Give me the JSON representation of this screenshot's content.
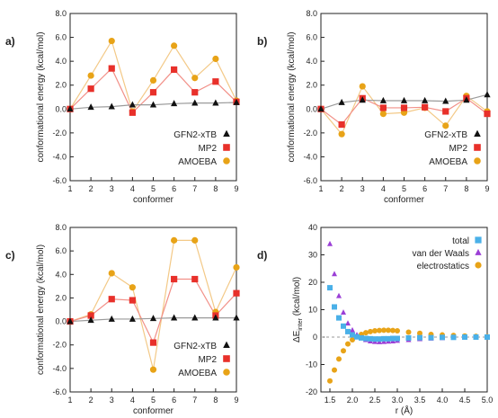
{
  "colors": {
    "gfn2": "#111111",
    "mp2": "#e8302a",
    "amoeba": "#e8a317",
    "amoeba_line": "#f3c987",
    "mp2_line": "#f29088",
    "gfn2_line": "#9a9a9a",
    "total": "#4ab0e8",
    "vdw": "#9b3fd6",
    "elec": "#e8a317",
    "zero": "#9a9a9a"
  },
  "chart_data": [
    {
      "panel": "a)",
      "type": "line",
      "xlabel": "conformer",
      "ylabel": "conformational energy (kcal/mol)",
      "x": [
        1,
        2,
        3,
        4,
        5,
        6,
        7,
        8,
        9
      ],
      "xticks": [
        "1",
        "2",
        "3",
        "4",
        "5",
        "6",
        "7",
        "8",
        "9"
      ],
      "xlim": [
        1,
        9
      ],
      "ylim": [
        -6,
        8
      ],
      "yticks": [
        "-6.0",
        "-4.0",
        "-2.0",
        "0.0",
        "2.0",
        "4.0",
        "6.0",
        "8.0"
      ],
      "legend_position": "lower-right",
      "series": [
        {
          "name": "GFN2-xTB",
          "marker": "triangle",
          "color_key": "gfn2",
          "values": [
            0.0,
            0.15,
            0.2,
            0.35,
            0.35,
            0.45,
            0.5,
            0.5,
            0.55
          ]
        },
        {
          "name": "MP2",
          "marker": "square",
          "color_key": "mp2",
          "values": [
            0.0,
            1.7,
            3.4,
            -0.3,
            1.4,
            3.3,
            1.4,
            2.3,
            0.6
          ]
        },
        {
          "name": "AMOEBA",
          "marker": "circle",
          "color_key": "amoeba",
          "values": [
            0.0,
            2.8,
            5.7,
            -0.2,
            2.4,
            5.3,
            2.6,
            4.2,
            0.7
          ]
        }
      ]
    },
    {
      "panel": "b)",
      "type": "line",
      "xlabel": "conformer",
      "ylabel": "conformational energy (kcal/mol)",
      "x": [
        1,
        2,
        3,
        4,
        5,
        6,
        7,
        8,
        9
      ],
      "xticks": [
        "1",
        "2",
        "3",
        "4",
        "5",
        "6",
        "7",
        "8",
        "9"
      ],
      "xlim": [
        1,
        9
      ],
      "ylim": [
        -6,
        8
      ],
      "yticks": [
        "-6.0",
        "-4.0",
        "-2.0",
        "0.0",
        "2.0",
        "4.0",
        "6.0",
        "8.0"
      ],
      "legend_position": "lower-right",
      "series": [
        {
          "name": "GFN2-xTB",
          "marker": "triangle",
          "color_key": "gfn2",
          "values": [
            0.0,
            0.55,
            0.75,
            0.7,
            0.7,
            0.7,
            0.65,
            0.75,
            1.2
          ]
        },
        {
          "name": "MP2",
          "marker": "square",
          "color_key": "mp2",
          "values": [
            0.0,
            -1.3,
            0.9,
            0.1,
            0.1,
            0.15,
            -0.2,
            0.9,
            -0.4
          ]
        },
        {
          "name": "AMOEBA",
          "marker": "circle",
          "color_key": "amoeba",
          "values": [
            0.0,
            -2.1,
            1.9,
            -0.4,
            -0.3,
            0.1,
            -1.4,
            1.1,
            -0.2
          ]
        }
      ]
    },
    {
      "panel": "c)",
      "type": "line",
      "xlabel": "conformer",
      "ylabel": "conformational energy (kcal/mol)",
      "x": [
        1,
        2,
        3,
        4,
        5,
        6,
        7,
        8,
        9
      ],
      "xticks": [
        "1",
        "2",
        "3",
        "4",
        "5",
        "6",
        "7",
        "8",
        "9"
      ],
      "xlim": [
        1,
        9
      ],
      "ylim": [
        -6,
        8
      ],
      "yticks": [
        "-6.0",
        "-4.0",
        "-2.0",
        "0.0",
        "2.0",
        "4.0",
        "6.0",
        "8.0"
      ],
      "legend_position": "lower-right",
      "series": [
        {
          "name": "GFN2-xTB",
          "marker": "triangle",
          "color_key": "gfn2",
          "values": [
            0.0,
            0.1,
            0.2,
            0.2,
            0.25,
            0.3,
            0.3,
            0.3,
            0.3
          ]
        },
        {
          "name": "MP2",
          "marker": "square",
          "color_key": "mp2",
          "values": [
            0.0,
            0.5,
            1.9,
            1.8,
            -1.8,
            3.6,
            3.6,
            0.5,
            2.4
          ]
        },
        {
          "name": "AMOEBA",
          "marker": "circle",
          "color_key": "amoeba",
          "values": [
            0.0,
            0.6,
            4.1,
            2.9,
            -4.1,
            6.9,
            6.9,
            0.8,
            4.6
          ]
        }
      ]
    },
    {
      "panel": "d)",
      "type": "scatter",
      "xlabel": "r (Å)",
      "ylabel_main": "ΔE",
      "ylabel_sub": "inter",
      "ylabel_tail": " (kcal/mol)",
      "xlim": [
        1.3,
        5.0
      ],
      "ylim": [
        -20,
        40
      ],
      "xticks": [
        1.5,
        2.0,
        2.5,
        3.0,
        3.5,
        4.0,
        4.5,
        5.0
      ],
      "xtick_labels": [
        "1.5",
        "2.0",
        "2.5",
        "3.0",
        "3.5",
        "4.0",
        "4.5",
        "5.0"
      ],
      "yticks": [
        -20,
        -10,
        0,
        10,
        20,
        30,
        40
      ],
      "ytick_labels": [
        "-20",
        "-10",
        "0",
        "10",
        "20",
        "30",
        "40"
      ],
      "legend_position": "upper-right",
      "series": [
        {
          "name": "total",
          "marker": "square",
          "color_key": "total",
          "x": [
            1.5,
            1.6,
            1.7,
            1.8,
            1.9,
            2.0,
            2.1,
            2.2,
            2.3,
            2.4,
            2.5,
            2.6,
            2.7,
            2.8,
            2.9,
            3.0,
            3.25,
            3.5,
            3.75,
            4.0,
            4.25,
            4.5,
            4.75,
            5.0
          ],
          "y": [
            18,
            11,
            7,
            4,
            2,
            0.8,
            0.1,
            -0.3,
            -0.5,
            -0.6,
            -0.7,
            -0.7,
            -0.6,
            -0.6,
            -0.5,
            -0.5,
            -0.3,
            -0.2,
            -0.2,
            -0.1,
            -0.1,
            0,
            0,
            0
          ]
        },
        {
          "name": "van der Waals",
          "marker": "triangle",
          "color_key": "vdw",
          "x": [
            1.5,
            1.6,
            1.7,
            1.8,
            1.9,
            2.0,
            2.1,
            2.2,
            2.3,
            2.4,
            2.5,
            2.6,
            2.7,
            2.8,
            2.9,
            3.0,
            3.25,
            3.5,
            3.75,
            4.0,
            4.25,
            4.5,
            4.75,
            5.0
          ],
          "y": [
            34,
            23,
            15,
            9,
            5,
            2.5,
            0.8,
            -0.3,
            -1.0,
            -1.5,
            -1.7,
            -1.8,
            -1.7,
            -1.6,
            -1.5,
            -1.3,
            -1.0,
            -0.7,
            -0.5,
            -0.3,
            -0.2,
            -0.1,
            -0.1,
            0
          ]
        },
        {
          "name": "electrostatics",
          "marker": "circle",
          "color_key": "elec",
          "x": [
            1.5,
            1.6,
            1.7,
            1.8,
            1.9,
            2.0,
            2.1,
            2.2,
            2.3,
            2.4,
            2.5,
            2.6,
            2.7,
            2.8,
            2.9,
            3.0,
            3.25,
            3.5,
            3.75,
            4.0,
            4.25,
            4.5,
            4.75,
            5.0
          ],
          "y": [
            -16,
            -12,
            -8,
            -5,
            -2.5,
            -1.0,
            0.2,
            1.0,
            1.6,
            2.0,
            2.3,
            2.4,
            2.5,
            2.5,
            2.4,
            2.3,
            1.8,
            1.4,
            1.0,
            0.8,
            0.6,
            0.4,
            0.3,
            0.2
          ]
        }
      ]
    }
  ]
}
